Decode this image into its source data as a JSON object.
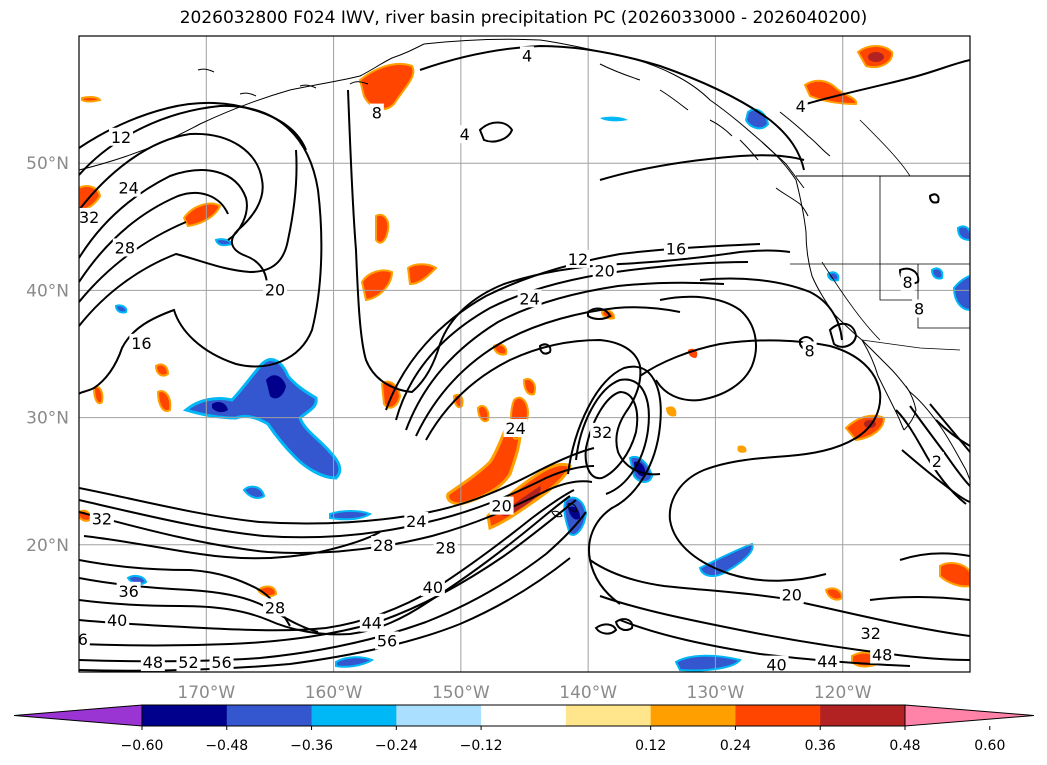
{
  "title": "2026032800 F024 IWV, river basin precipitation PC (2026033000 - 2026040200)",
  "map": {
    "lon_range": [
      -180,
      -110
    ],
    "lat_range": [
      10,
      60
    ],
    "lat_ticks": [
      {
        "value": 20,
        "label": "20°N"
      },
      {
        "value": 30,
        "label": "30°N"
      },
      {
        "value": 40,
        "label": "40°N"
      },
      {
        "value": 50,
        "label": "50°N"
      }
    ],
    "lon_ticks": [
      {
        "value": -170,
        "label": "170°W"
      },
      {
        "value": -160,
        "label": "160°W"
      },
      {
        "value": -150,
        "label": "150°W"
      },
      {
        "value": -140,
        "label": "140°W"
      },
      {
        "value": -130,
        "label": "130°W"
      },
      {
        "value": -120,
        "label": "120°W"
      }
    ],
    "grid": true,
    "contour_labels": [
      {
        "text": "4",
        "lon": -144.8,
        "lat": 58.4
      },
      {
        "text": "4",
        "lon": -149.7,
        "lat": 52.2
      },
      {
        "text": "4",
        "lon": -123.3,
        "lat": 54.4
      },
      {
        "text": "8",
        "lon": -156.6,
        "lat": 53.9
      },
      {
        "text": "12",
        "lon": -176.7,
        "lat": 52.0
      },
      {
        "text": "24",
        "lon": -176.1,
        "lat": 48.0
      },
      {
        "text": "32",
        "lon": -179.2,
        "lat": 45.7
      },
      {
        "text": "28",
        "lon": -176.4,
        "lat": 43.3
      },
      {
        "text": "20",
        "lon": -164.6,
        "lat": 40.0
      },
      {
        "text": "16",
        "lon": -175.1,
        "lat": 35.8
      },
      {
        "text": "12",
        "lon": -140.8,
        "lat": 42.4
      },
      {
        "text": "20",
        "lon": -138.7,
        "lat": 41.5
      },
      {
        "text": "16",
        "lon": -133.1,
        "lat": 43.2
      },
      {
        "text": "24",
        "lon": -144.6,
        "lat": 39.3
      },
      {
        "text": "8",
        "lon": -114.9,
        "lat": 40.6
      },
      {
        "text": "8",
        "lon": -114.0,
        "lat": 38.5
      },
      {
        "text": "8",
        "lon": -122.6,
        "lat": 35.2
      },
      {
        "text": "32",
        "lon": -138.9,
        "lat": 28.8
      },
      {
        "text": "24",
        "lon": -145.7,
        "lat": 29.1
      },
      {
        "text": "20",
        "lon": -146.8,
        "lat": 23.0
      },
      {
        "text": "24",
        "lon": -153.5,
        "lat": 21.8
      },
      {
        "text": "28",
        "lon": -156.1,
        "lat": 19.9
      },
      {
        "text": "28",
        "lon": -151.2,
        "lat": 19.7
      },
      {
        "text": "32",
        "lon": -178.2,
        "lat": 22.0
      },
      {
        "text": "36",
        "lon": -176.1,
        "lat": 16.3
      },
      {
        "text": "40",
        "lon": -177.0,
        "lat": 14.0
      },
      {
        "text": "28",
        "lon": -164.6,
        "lat": 15.0
      },
      {
        "text": "40",
        "lon": -152.2,
        "lat": 16.6
      },
      {
        "text": "44",
        "lon": -157.0,
        "lat": 13.8
      },
      {
        "text": "56",
        "lon": -155.8,
        "lat": 12.4
      },
      {
        "text": "6",
        "lon": -179.7,
        "lat": 12.5
      },
      {
        "text": "48",
        "lon": -174.2,
        "lat": 10.7
      },
      {
        "text": "52",
        "lon": -171.4,
        "lat": 10.7
      },
      {
        "text": "56",
        "lon": -168.8,
        "lat": 10.7
      },
      {
        "text": "20",
        "lon": -124.0,
        "lat": 16.0
      },
      {
        "text": "32",
        "lon": -117.8,
        "lat": 13.0
      },
      {
        "text": "48",
        "lon": -116.9,
        "lat": 11.3
      },
      {
        "text": "44",
        "lon": -121.2,
        "lat": 10.8
      },
      {
        "text": "40",
        "lon": -125.2,
        "lat": 10.5
      },
      {
        "text": "2",
        "lon": -112.6,
        "lat": 26.5
      }
    ]
  },
  "colorbar": {
    "ticks": [
      "−0.60",
      "−0.48",
      "−0.36",
      "−0.24",
      "−0.12",
      "0.12",
      "0.24",
      "0.36",
      "0.48",
      "0.60"
    ],
    "colors": [
      "#9a35d3",
      "#00008c",
      "#3456cf",
      "#00b8f5",
      "#aadfff",
      "#ffffff",
      "#ffe68c",
      "#ffa000",
      "#ff4500",
      "#b22222",
      "#ff82a8"
    ],
    "extend": "both"
  }
}
